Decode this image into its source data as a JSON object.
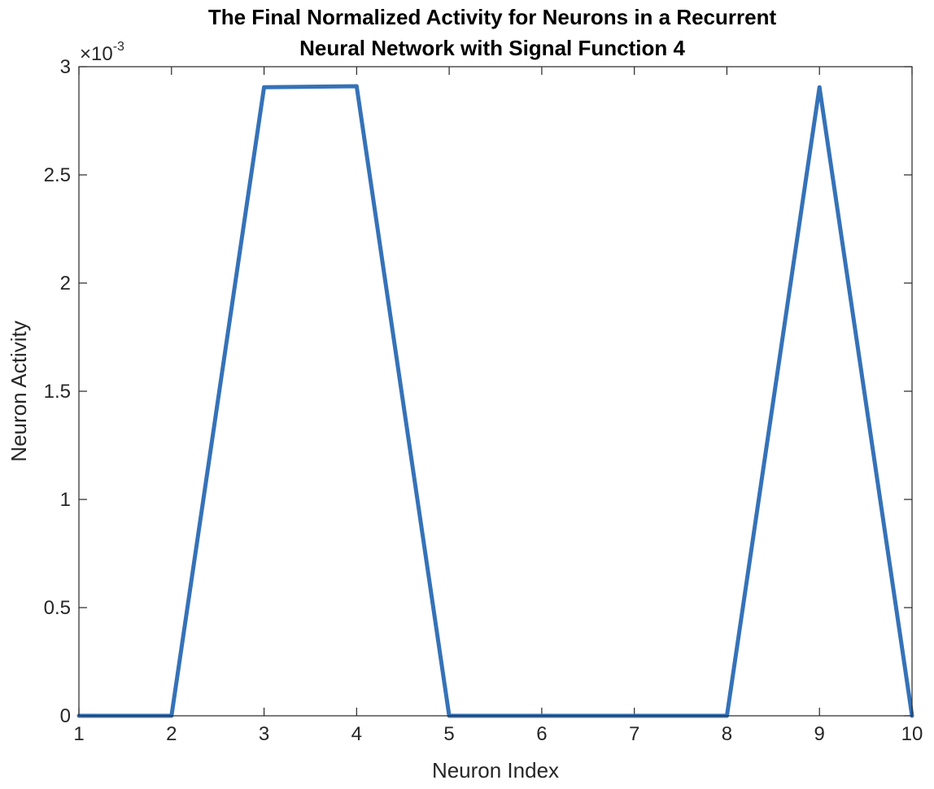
{
  "chart_data": {
    "type": "line",
    "title_lines": [
      "The Final Normalized Activity for Neurons in a Recurrent",
      "Neural Network with Signal Function 4"
    ],
    "xlabel": "Neuron Index",
    "ylabel": "Neuron Activity",
    "exponent_base": "×10",
    "exponent_power": "-3",
    "xlim": [
      1,
      10
    ],
    "ylim": [
      0,
      3
    ],
    "y_scale_note": "values shown in units of 10^-3",
    "xticks": [
      "1",
      "2",
      "3",
      "4",
      "5",
      "6",
      "7",
      "8",
      "9",
      "10"
    ],
    "yticks": [
      "0",
      "0.5",
      "1",
      "1.5",
      "2",
      "2.5",
      "3"
    ],
    "grid": false,
    "series": [
      {
        "color": "#3572b8",
        "x": [
          1,
          2,
          3,
          4,
          5,
          6,
          7,
          8,
          9,
          10
        ],
        "values": [
          0,
          0,
          2.905,
          2.91,
          0,
          0,
          0,
          0,
          2.905,
          0
        ]
      }
    ]
  }
}
